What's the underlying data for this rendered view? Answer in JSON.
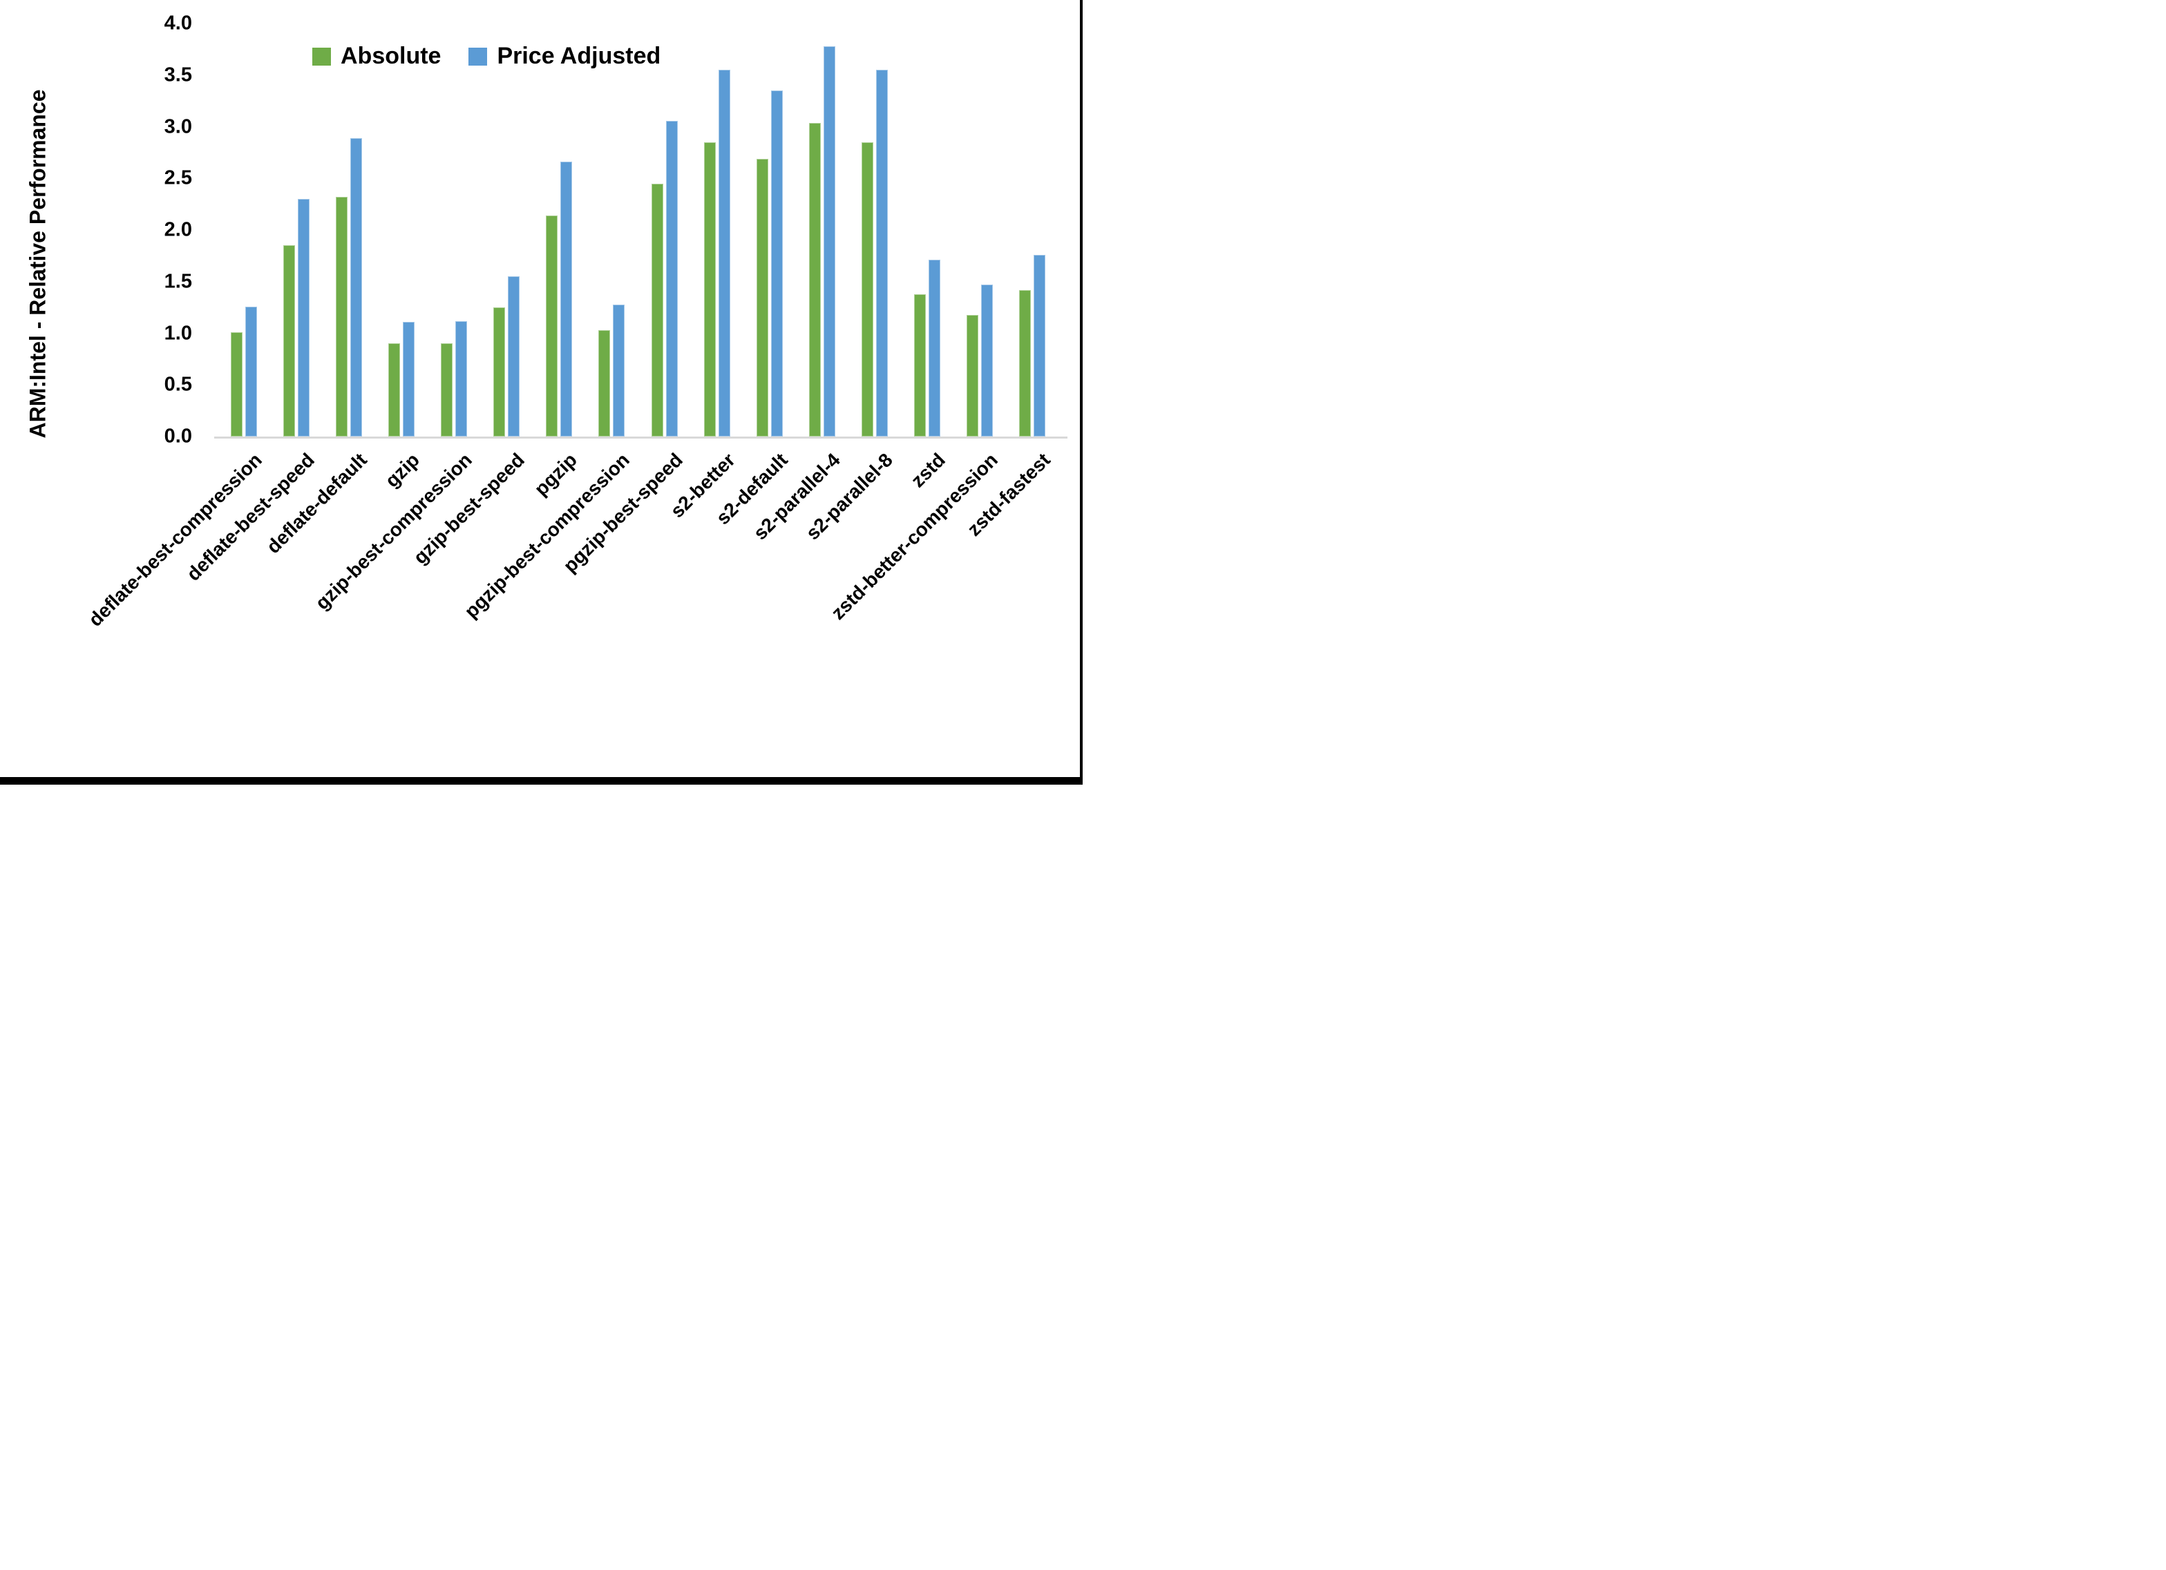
{
  "y_axis": {
    "title": "ARM:Intel - Relative Performance",
    "tick_labels": [
      "0.0",
      "0.5",
      "1.0",
      "1.5",
      "2.0",
      "2.5",
      "3.0",
      "3.5",
      "4.0"
    ]
  },
  "frame": {
    "right_edge_color": "#000000",
    "bottom_edge_color": "#000000"
  },
  "chart_data": {
    "type": "bar",
    "title": "",
    "xlabel": "",
    "ylabel": "ARM:Intel - Relative Performance",
    "ylim": [
      0,
      4
    ],
    "ytick_step": 0.5,
    "grid": false,
    "legend_position": "top-center",
    "axis_line_color": "#d9d9d9",
    "background_color": "#ffffff",
    "categories": [
      "deflate-best-compression",
      "deflate-best-speed",
      "deflate-default",
      "gzip",
      "gzip-best-compression",
      "gzip-best-speed",
      "pgzip",
      "pgzip-best-compression",
      "pgzip-best-speed",
      "s2-better",
      "s2-default",
      "s2-parallel-4",
      "s2-parallel-8",
      "zstd",
      "zstd-better-compression",
      "zstd-fastest"
    ],
    "series": [
      {
        "name": "Absolute",
        "color": "#6fac47",
        "values": [
          1.01,
          1.85,
          2.32,
          0.9,
          0.9,
          1.25,
          2.14,
          1.03,
          2.45,
          2.85,
          2.69,
          3.04,
          2.85,
          1.38,
          1.18,
          1.42
        ]
      },
      {
        "name": "Price Adjusted",
        "color": "#5b9bd5",
        "values": [
          1.26,
          2.3,
          2.89,
          1.11,
          1.12,
          1.55,
          2.66,
          1.28,
          3.06,
          3.55,
          3.35,
          3.78,
          3.55,
          1.71,
          1.47,
          1.76
        ]
      }
    ]
  }
}
